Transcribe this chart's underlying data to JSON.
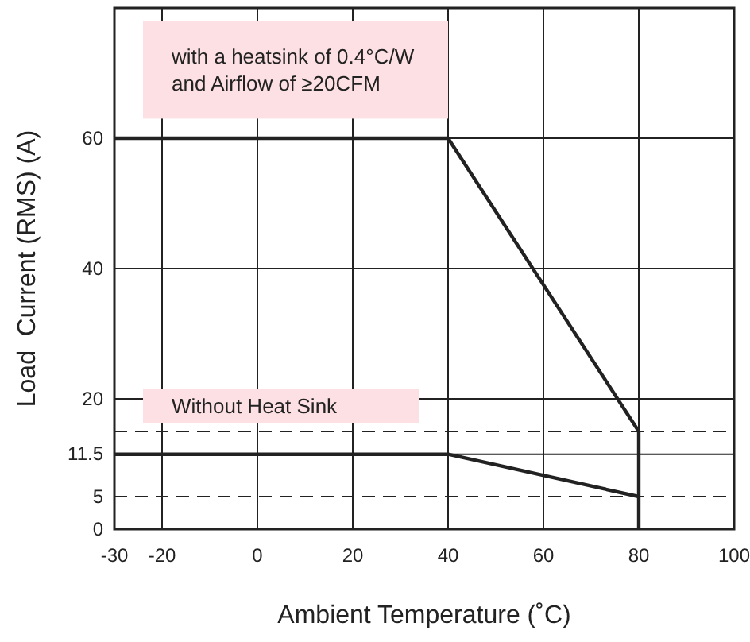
{
  "chart_data": {
    "type": "line",
    "xlabel": "Ambient Temperature (˚C)",
    "ylabel": "Load  Current (RMS) (A)",
    "xlim": [
      -30,
      100
    ],
    "xticks": [
      -30,
      -20,
      0,
      20,
      40,
      60,
      80,
      100
    ],
    "ylim": [
      0,
      80
    ],
    "yticks": [
      0,
      5,
      11.5,
      20,
      40,
      60
    ],
    "grid": true,
    "line_style": "solid",
    "marker": "none",
    "series": [
      {
        "color": "#222222",
        "x": [
          -30,
          40,
          80,
          80
        ],
        "values": [
          60,
          60,
          15,
          0
        ]
      },
      {
        "color": "#222222",
        "x": [
          -30,
          40,
          80
        ],
        "values": [
          11.5,
          11.5,
          5
        ]
      }
    ],
    "ref_lines": [
      {
        "axis": "y",
        "value": 15,
        "color": "#222222",
        "line_style": "dashed"
      },
      {
        "axis": "y",
        "value": 5,
        "color": "#222222",
        "line_style": "dashed"
      }
    ],
    "annotations": [
      "with a heatsink of 0.4°C/W\nand Airflow of ≥20CFM",
      "Without Heat Sink"
    ]
  }
}
